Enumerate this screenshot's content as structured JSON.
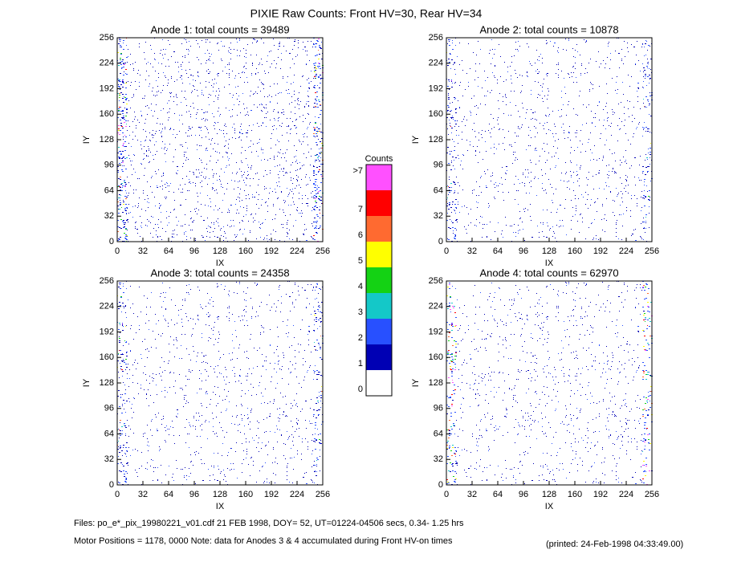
{
  "title": "PIXIE Raw Counts:  Front HV=30, Rear HV=34",
  "chart_data": [
    {
      "type": "heatmap",
      "title": "Anode 1: total counts = 39489",
      "xlabel": "IX",
      "ylabel": "IY",
      "xlim": [
        0,
        256
      ],
      "ylim": [
        0,
        256
      ],
      "xticks": [
        0,
        32,
        64,
        96,
        128,
        160,
        192,
        224,
        256
      ],
      "yticks": [
        0,
        32,
        64,
        96,
        128,
        160,
        192,
        224,
        256
      ]
    },
    {
      "type": "heatmap",
      "title": "Anode 2: total counts = 10878",
      "xlabel": "IX",
      "ylabel": "IY",
      "xlim": [
        0,
        256
      ],
      "ylim": [
        0,
        256
      ],
      "xticks": [
        0,
        32,
        64,
        96,
        128,
        160,
        192,
        224,
        256
      ],
      "yticks": [
        0,
        32,
        64,
        96,
        128,
        160,
        192,
        224,
        256
      ]
    },
    {
      "type": "heatmap",
      "title": "Anode 3: total counts = 24358",
      "xlabel": "IX",
      "ylabel": "IY",
      "xlim": [
        0,
        256
      ],
      "ylim": [
        0,
        256
      ],
      "xticks": [
        0,
        32,
        64,
        96,
        128,
        160,
        192,
        224,
        256
      ],
      "yticks": [
        0,
        32,
        64,
        96,
        128,
        160,
        192,
        224,
        256
      ]
    },
    {
      "type": "heatmap",
      "title": "Anode 4: total counts = 62970",
      "xlabel": "IX",
      "ylabel": "IY",
      "xlim": [
        0,
        256
      ],
      "ylim": [
        0,
        256
      ],
      "xticks": [
        0,
        32,
        64,
        96,
        128,
        160,
        192,
        224,
        256
      ],
      "yticks": [
        0,
        32,
        64,
        96,
        128,
        160,
        192,
        224,
        256
      ]
    }
  ],
  "colorbar": {
    "title": "Counts",
    "levels": [
      {
        "label": "0",
        "color": "#ffffff"
      },
      {
        "label": "1",
        "color": "#0000b4"
      },
      {
        "label": "2",
        "color": "#2850ff"
      },
      {
        "label": "3",
        "color": "#14c8c8"
      },
      {
        "label": "4",
        "color": "#14d214"
      },
      {
        "label": "5",
        "color": "#ffff00"
      },
      {
        "label": "6",
        "color": "#ff6a30"
      },
      {
        "label": "7",
        "color": "#ff0000"
      },
      {
        "label": ">7",
        "color": "#ff50ff"
      }
    ]
  },
  "footer": {
    "files": "Files: po_e*_pix_19980221_v01.cdf    21 FEB 1998, DOY= 52, UT=01224-04506 secs,  0.34- 1.25 hrs",
    "motor": "Motor Positions = 1178, 0000   Note: data for Anodes 3 & 4 accumulated during Front HV-on times",
    "printed": "(printed: 24-Feb-1998 04:33:49.00)"
  }
}
